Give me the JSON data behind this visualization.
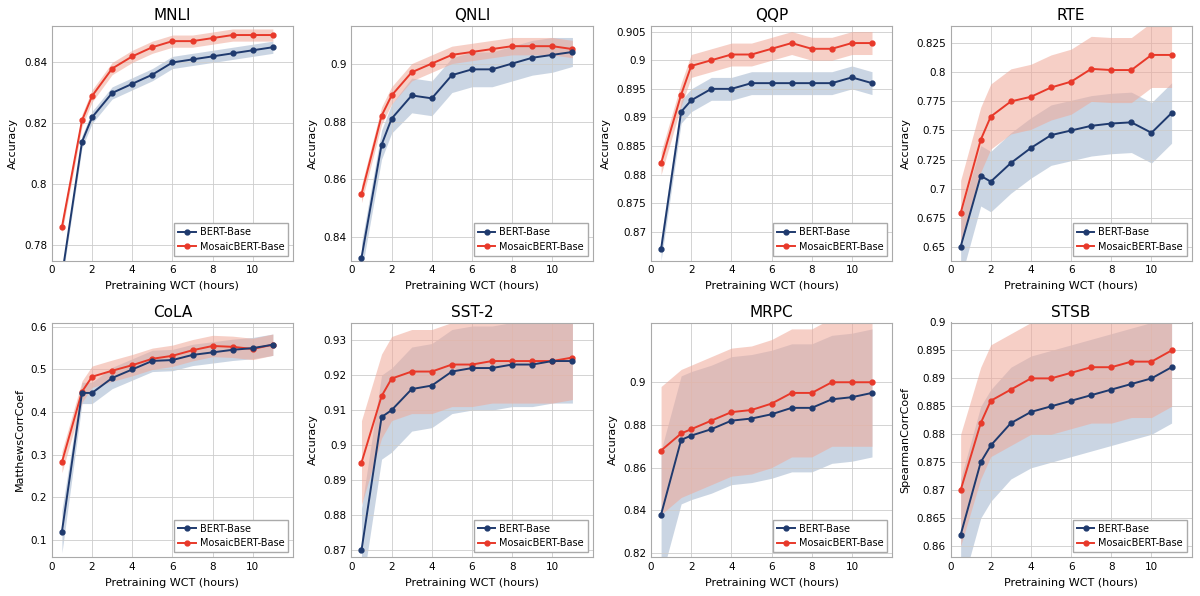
{
  "x": [
    0.5,
    1.5,
    2,
    3,
    4,
    5,
    6,
    7,
    8,
    9,
    10,
    11
  ],
  "bert_color": "#1f3a6e",
  "mosaic_color": "#e8392a",
  "bert_fill": "#a0b4cc",
  "mosaic_fill": "#f0a898",
  "MNLI": {
    "bert_mean": [
      0.77,
      0.814,
      0.822,
      0.83,
      0.833,
      0.836,
      0.84,
      0.841,
      0.842,
      0.843,
      0.844,
      0.845
    ],
    "bert_lo": [
      0.768,
      0.812,
      0.82,
      0.828,
      0.831,
      0.834,
      0.838,
      0.839,
      0.84,
      0.841,
      0.842,
      0.843
    ],
    "bert_hi": [
      0.772,
      0.816,
      0.824,
      0.832,
      0.835,
      0.838,
      0.842,
      0.843,
      0.844,
      0.845,
      0.846,
      0.847
    ],
    "mosaic_mean": [
      0.786,
      0.821,
      0.829,
      0.838,
      0.842,
      0.845,
      0.847,
      0.847,
      0.848,
      0.849,
      0.849,
      0.849
    ],
    "mosaic_lo": [
      0.784,
      0.819,
      0.827,
      0.836,
      0.84,
      0.843,
      0.845,
      0.845,
      0.846,
      0.847,
      0.847,
      0.847
    ],
    "mosaic_hi": [
      0.788,
      0.823,
      0.831,
      0.84,
      0.844,
      0.847,
      0.849,
      0.849,
      0.85,
      0.851,
      0.851,
      0.851
    ],
    "ylabel": "Accuracy",
    "ylim": [
      0.775,
      0.852
    ],
    "yticks": [
      0.78,
      0.8,
      0.82,
      0.84
    ]
  },
  "QNLI": {
    "bert_mean": [
      0.833,
      0.872,
      0.881,
      0.889,
      0.888,
      0.896,
      0.898,
      0.898,
      0.9,
      0.902,
      0.903,
      0.904
    ],
    "bert_lo": [
      0.828,
      0.867,
      0.876,
      0.883,
      0.882,
      0.89,
      0.892,
      0.892,
      0.894,
      0.896,
      0.897,
      0.899
    ],
    "bert_hi": [
      0.838,
      0.877,
      0.886,
      0.895,
      0.894,
      0.902,
      0.904,
      0.904,
      0.906,
      0.908,
      0.909,
      0.909
    ],
    "mosaic_mean": [
      0.855,
      0.882,
      0.889,
      0.897,
      0.9,
      0.903,
      0.904,
      0.905,
      0.906,
      0.906,
      0.906,
      0.905
    ],
    "mosaic_lo": [
      0.852,
      0.879,
      0.886,
      0.894,
      0.897,
      0.9,
      0.901,
      0.902,
      0.903,
      0.903,
      0.903,
      0.902
    ],
    "mosaic_hi": [
      0.858,
      0.885,
      0.892,
      0.9,
      0.903,
      0.906,
      0.907,
      0.908,
      0.909,
      0.909,
      0.909,
      0.908
    ],
    "ylabel": "Accuracy",
    "ylim": [
      0.832,
      0.913
    ],
    "yticks": [
      0.84,
      0.86,
      0.88,
      0.9
    ]
  },
  "QQP": {
    "bert_mean": [
      0.867,
      0.891,
      0.893,
      0.895,
      0.895,
      0.896,
      0.896,
      0.896,
      0.896,
      0.896,
      0.897,
      0.896
    ],
    "bert_lo": [
      0.865,
      0.889,
      0.891,
      0.893,
      0.893,
      0.894,
      0.894,
      0.894,
      0.894,
      0.894,
      0.895,
      0.894
    ],
    "bert_hi": [
      0.869,
      0.893,
      0.895,
      0.897,
      0.897,
      0.898,
      0.898,
      0.898,
      0.898,
      0.898,
      0.899,
      0.898
    ],
    "mosaic_mean": [
      0.882,
      0.894,
      0.899,
      0.9,
      0.901,
      0.901,
      0.902,
      0.903,
      0.902,
      0.902,
      0.903,
      0.903
    ],
    "mosaic_lo": [
      0.88,
      0.892,
      0.897,
      0.898,
      0.899,
      0.899,
      0.9,
      0.901,
      0.9,
      0.9,
      0.901,
      0.901
    ],
    "mosaic_hi": [
      0.884,
      0.896,
      0.901,
      0.902,
      0.903,
      0.903,
      0.904,
      0.905,
      0.904,
      0.904,
      0.905,
      0.905
    ],
    "ylabel": "Accuracy",
    "ylim": [
      0.865,
      0.906
    ],
    "yticks": [
      0.87,
      0.875,
      0.88,
      0.885,
      0.89,
      0.895,
      0.9,
      0.905
    ]
  },
  "RTE": {
    "bert_mean": [
      0.65,
      0.711,
      0.706,
      0.722,
      0.735,
      0.746,
      0.75,
      0.754,
      0.756,
      0.757,
      0.748,
      0.765
    ],
    "bert_lo": [
      0.622,
      0.685,
      0.68,
      0.696,
      0.709,
      0.72,
      0.724,
      0.728,
      0.73,
      0.731,
      0.722,
      0.739
    ],
    "bert_hi": [
      0.678,
      0.737,
      0.732,
      0.748,
      0.761,
      0.772,
      0.776,
      0.78,
      0.782,
      0.783,
      0.774,
      0.791
    ],
    "mosaic_mean": [
      0.679,
      0.742,
      0.762,
      0.775,
      0.779,
      0.787,
      0.792,
      0.803,
      0.802,
      0.802,
      0.815,
      0.815
    ],
    "mosaic_lo": [
      0.651,
      0.714,
      0.734,
      0.747,
      0.751,
      0.759,
      0.764,
      0.775,
      0.774,
      0.774,
      0.787,
      0.787
    ],
    "mosaic_hi": [
      0.707,
      0.77,
      0.79,
      0.803,
      0.807,
      0.815,
      0.82,
      0.831,
      0.83,
      0.83,
      0.843,
      0.843
    ],
    "ylabel": "Accuracy",
    "ylim": [
      0.638,
      0.84
    ],
    "yticks": [
      0.65,
      0.675,
      0.7,
      0.725,
      0.75,
      0.775,
      0.8,
      0.825
    ]
  },
  "CoLA": {
    "bert_mean": [
      0.12,
      0.445,
      0.445,
      0.48,
      0.5,
      0.52,
      0.522,
      0.534,
      0.54,
      0.546,
      0.55,
      0.558
    ],
    "bert_lo": [
      0.07,
      0.42,
      0.42,
      0.455,
      0.475,
      0.495,
      0.497,
      0.509,
      0.515,
      0.521,
      0.525,
      0.533
    ],
    "bert_hi": [
      0.17,
      0.47,
      0.47,
      0.505,
      0.525,
      0.545,
      0.547,
      0.559,
      0.565,
      0.571,
      0.575,
      0.583
    ],
    "mosaic_mean": [
      0.283,
      0.448,
      0.483,
      0.497,
      0.51,
      0.525,
      0.532,
      0.545,
      0.555,
      0.553,
      0.548,
      0.558
    ],
    "mosaic_lo": [
      0.258,
      0.423,
      0.458,
      0.472,
      0.485,
      0.5,
      0.507,
      0.52,
      0.53,
      0.528,
      0.523,
      0.533
    ],
    "mosaic_hi": [
      0.308,
      0.473,
      0.508,
      0.522,
      0.535,
      0.55,
      0.557,
      0.57,
      0.58,
      0.578,
      0.573,
      0.583
    ],
    "ylabel": "MatthewsCorrCoef",
    "ylim": [
      0.06,
      0.61
    ],
    "yticks": [
      0.1,
      0.2,
      0.3,
      0.4,
      0.5,
      0.6
    ]
  },
  "SST-2": {
    "bert_mean": [
      0.87,
      0.908,
      0.91,
      0.916,
      0.917,
      0.921,
      0.922,
      0.922,
      0.923,
      0.923,
      0.924,
      0.924
    ],
    "bert_lo": [
      0.858,
      0.896,
      0.898,
      0.904,
      0.905,
      0.909,
      0.91,
      0.91,
      0.911,
      0.911,
      0.912,
      0.912
    ],
    "bert_hi": [
      0.882,
      0.92,
      0.922,
      0.928,
      0.929,
      0.933,
      0.934,
      0.934,
      0.935,
      0.935,
      0.936,
      0.936
    ],
    "mosaic_mean": [
      0.895,
      0.914,
      0.919,
      0.921,
      0.921,
      0.923,
      0.923,
      0.924,
      0.924,
      0.924,
      0.924,
      0.925
    ],
    "mosaic_lo": [
      0.883,
      0.902,
      0.907,
      0.909,
      0.909,
      0.911,
      0.911,
      0.912,
      0.912,
      0.912,
      0.912,
      0.913
    ],
    "mosaic_hi": [
      0.907,
      0.926,
      0.931,
      0.933,
      0.933,
      0.935,
      0.935,
      0.936,
      0.936,
      0.936,
      0.936,
      0.937
    ],
    "ylabel": "Accuracy",
    "ylim": [
      0.868,
      0.935
    ],
    "yticks": [
      0.87,
      0.88,
      0.89,
      0.9,
      0.91,
      0.92,
      0.93
    ]
  },
  "MRPC": {
    "bert_mean": [
      0.838,
      0.873,
      0.875,
      0.878,
      0.882,
      0.883,
      0.885,
      0.888,
      0.888,
      0.892,
      0.893,
      0.895
    ],
    "bert_lo": [
      0.808,
      0.843,
      0.845,
      0.848,
      0.852,
      0.853,
      0.855,
      0.858,
      0.858,
      0.862,
      0.863,
      0.865
    ],
    "bert_hi": [
      0.868,
      0.903,
      0.905,
      0.908,
      0.912,
      0.913,
      0.915,
      0.918,
      0.918,
      0.922,
      0.923,
      0.925
    ],
    "mosaic_mean": [
      0.868,
      0.876,
      0.878,
      0.882,
      0.886,
      0.887,
      0.89,
      0.895,
      0.895,
      0.9,
      0.9,
      0.9
    ],
    "mosaic_lo": [
      0.838,
      0.846,
      0.848,
      0.852,
      0.856,
      0.857,
      0.86,
      0.865,
      0.865,
      0.87,
      0.87,
      0.87
    ],
    "mosaic_hi": [
      0.898,
      0.906,
      0.908,
      0.912,
      0.916,
      0.917,
      0.92,
      0.925,
      0.925,
      0.93,
      0.93,
      0.93
    ],
    "ylabel": "Accuracy",
    "ylim": [
      0.818,
      0.928
    ],
    "yticks": [
      0.82,
      0.84,
      0.86,
      0.88,
      0.9
    ]
  },
  "STSB": {
    "bert_mean": [
      0.862,
      0.875,
      0.878,
      0.882,
      0.884,
      0.885,
      0.886,
      0.887,
      0.888,
      0.889,
      0.89,
      0.892
    ],
    "bert_lo": [
      0.852,
      0.865,
      0.868,
      0.872,
      0.874,
      0.875,
      0.876,
      0.877,
      0.878,
      0.879,
      0.88,
      0.882
    ],
    "bert_hi": [
      0.872,
      0.885,
      0.888,
      0.892,
      0.894,
      0.895,
      0.896,
      0.897,
      0.898,
      0.899,
      0.9,
      0.902
    ],
    "mosaic_mean": [
      0.87,
      0.882,
      0.886,
      0.888,
      0.89,
      0.89,
      0.891,
      0.892,
      0.892,
      0.893,
      0.893,
      0.895
    ],
    "mosaic_lo": [
      0.86,
      0.872,
      0.876,
      0.878,
      0.88,
      0.88,
      0.881,
      0.882,
      0.882,
      0.883,
      0.883,
      0.885
    ],
    "mosaic_hi": [
      0.88,
      0.892,
      0.896,
      0.898,
      0.9,
      0.9,
      0.901,
      0.902,
      0.902,
      0.903,
      0.903,
      0.905
    ],
    "ylabel": "SpearmanCorrCoef",
    "ylim": [
      0.858,
      0.9
    ],
    "yticks": [
      0.86,
      0.865,
      0.87,
      0.875,
      0.88,
      0.885,
      0.89,
      0.895,
      0.9
    ]
  }
}
